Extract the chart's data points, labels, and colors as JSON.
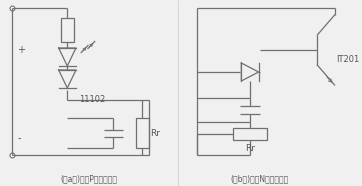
{
  "bg_color": "#f0f0f0",
  "line_color": "#707070",
  "text_color": "#555555",
  "label_a": "(｡a｡)采用P型热晶闸管",
  "label_b": "(｡b｡)采用N型热晶闸管",
  "label_11102": "11102",
  "label_Rr_a": "Rr",
  "label_Rr_b": "Rr",
  "label_IT201": "IT201",
  "label_plus": "+",
  "label_minus": "-",
  "fig_width": 3.62,
  "fig_height": 1.86
}
